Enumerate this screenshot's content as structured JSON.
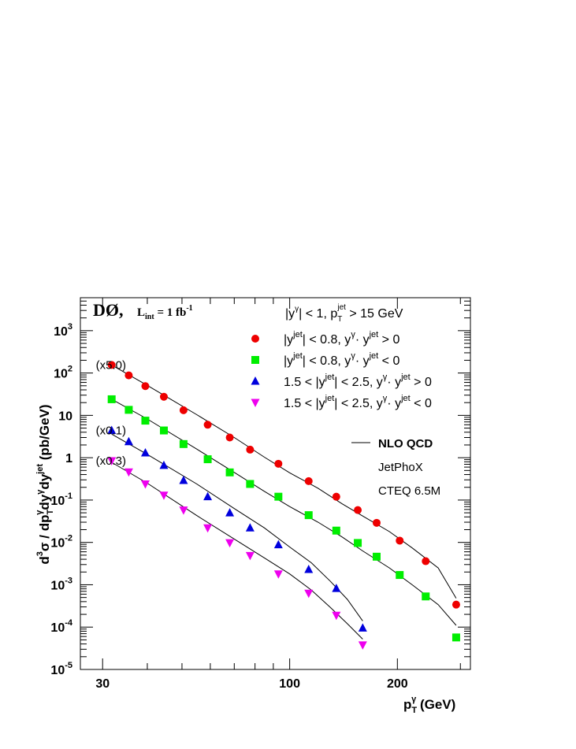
{
  "chart_data": {
    "type": "scatter",
    "x_scale": "log",
    "y_scale": "log",
    "xlim": [
      26,
      320
    ],
    "ylim": [
      1e-05,
      6000
    ],
    "x_ticks": [
      {
        "value": 30,
        "label": "30"
      },
      {
        "value": 100,
        "label": "100"
      },
      {
        "value": 200,
        "label": "200"
      }
    ],
    "y_ticks": [
      {
        "value": 1e-05,
        "base": "10",
        "exp": "-5"
      },
      {
        "value": 0.0001,
        "base": "10",
        "exp": "-4"
      },
      {
        "value": 0.001,
        "base": "10",
        "exp": "-3"
      },
      {
        "value": 0.01,
        "base": "10",
        "exp": "-2"
      },
      {
        "value": 0.1,
        "base": "10",
        "exp": "-1"
      },
      {
        "value": 1,
        "base": "1",
        "exp": ""
      },
      {
        "value": 10,
        "base": "10",
        "exp": ""
      },
      {
        "value": 100,
        "base": "10",
        "exp": "2"
      },
      {
        "value": 1000,
        "base": "10",
        "exp": "3"
      }
    ],
    "xlabel": {
      "main": "p",
      "sub": "T",
      "sup": "γ",
      "unit": " (GeV)"
    },
    "ylabel": "d³σ / dp_T^γ dy^γ dy^jet  (pb/GeV)",
    "experiment": {
      "name": "DØ,",
      "lumi_prefix": "L",
      "lumi_sub": "int",
      "lumi_value": " = 1 fb",
      "lumi_exp": "-1"
    },
    "cuts": "|y^γ| < 1,  p_T^jet > 15 GeV",
    "theory": {
      "line1": "NLO QCD",
      "line2": "JetPhoX",
      "line3": "CTEQ 6.5M"
    },
    "grid": false,
    "series": [
      {
        "name": "|y^jet| < 0.8,  y^γ· y^jet > 0",
        "marker": "circle",
        "color": "#ee0000",
        "scale_label": "(x5.0)",
        "x": [
          31.8,
          35.5,
          39.5,
          44.5,
          50.5,
          59,
          68,
          77.5,
          93,
          113,
          135,
          155,
          175,
          203,
          240,
          292
        ],
        "y": [
          155,
          88,
          49,
          27.5,
          13.2,
          6.0,
          3.0,
          1.55,
          0.72,
          0.28,
          0.12,
          0.058,
          0.029,
          0.011,
          0.0036,
          0.00034
        ],
        "curve_x": [
          31.8,
          40,
          55,
          70,
          85,
          100,
          120,
          140,
          160,
          190,
          220,
          260,
          292
        ],
        "curve_y": [
          155,
          51,
          10.4,
          3.0,
          1.03,
          0.44,
          0.19,
          0.082,
          0.042,
          0.018,
          0.0074,
          0.0025,
          0.00048
        ]
      },
      {
        "name": "|y^jet| < 0.8,  y^γ· y^jet < 0",
        "marker": "square",
        "color": "#00ee00",
        "scale_label": "(x0.1)",
        "x": [
          31.8,
          35.5,
          39.5,
          44.5,
          50.5,
          59,
          68,
          77.5,
          93,
          113,
          135,
          155,
          175,
          203,
          240,
          292
        ],
        "y": [
          24,
          13.5,
          7.5,
          4.4,
          2.1,
          0.92,
          0.45,
          0.24,
          0.12,
          0.044,
          0.019,
          0.0097,
          0.0046,
          0.0017,
          0.00053,
          5.7e-05
        ],
        "curve_x": [
          31.8,
          40,
          55,
          70,
          85,
          100,
          120,
          140,
          160,
          190,
          220,
          260,
          292
        ],
        "curve_y": [
          24,
          8.2,
          1.6,
          0.45,
          0.16,
          0.07,
          0.03,
          0.0135,
          0.0063,
          0.0025,
          0.001,
          0.00034,
          0.00011
        ]
      },
      {
        "name": "1.5 < |y^jet| < 2.5,  y^γ· y^jet > 0",
        "marker": "triangle-up",
        "color": "#0000dd",
        "scale_label": "(x0.1)",
        "x": [
          31.8,
          35.5,
          39.5,
          44.5,
          50.5,
          59,
          68,
          77.5,
          93,
          113,
          135,
          160
        ],
        "y": [
          4.4,
          2.4,
          1.3,
          0.66,
          0.29,
          0.12,
          0.05,
          0.022,
          0.0088,
          0.0023,
          0.00082,
          9.5e-05
        ],
        "curve_x": [
          31.8,
          40,
          55,
          70,
          85,
          100,
          115,
          130,
          145,
          160
        ],
        "curve_y": [
          3.6,
          1.2,
          0.24,
          0.063,
          0.022,
          0.0078,
          0.0033,
          0.0012,
          0.00045,
          0.00014
        ]
      },
      {
        "name": "1.5 < |y^jet| < 2.5,  y^γ· y^jet < 0",
        "marker": "triangle-down",
        "color": "#ee00ee",
        "scale_label": "(x0.3)",
        "x": [
          31.8,
          35.5,
          39.5,
          44.5,
          50.5,
          59,
          68,
          77.5,
          93,
          113,
          135,
          160
        ],
        "y": [
          0.85,
          0.46,
          0.24,
          0.13,
          0.058,
          0.022,
          0.0098,
          0.0049,
          0.0018,
          0.00063,
          0.00019,
          3.8e-05
        ],
        "curve_x": [
          31.8,
          40,
          55,
          70,
          85,
          100,
          115,
          130,
          145,
          160
        ],
        "curve_y": [
          0.78,
          0.25,
          0.043,
          0.012,
          0.0043,
          0.0018,
          0.00075,
          0.00029,
          0.00012,
          5.2e-05
        ]
      }
    ]
  }
}
